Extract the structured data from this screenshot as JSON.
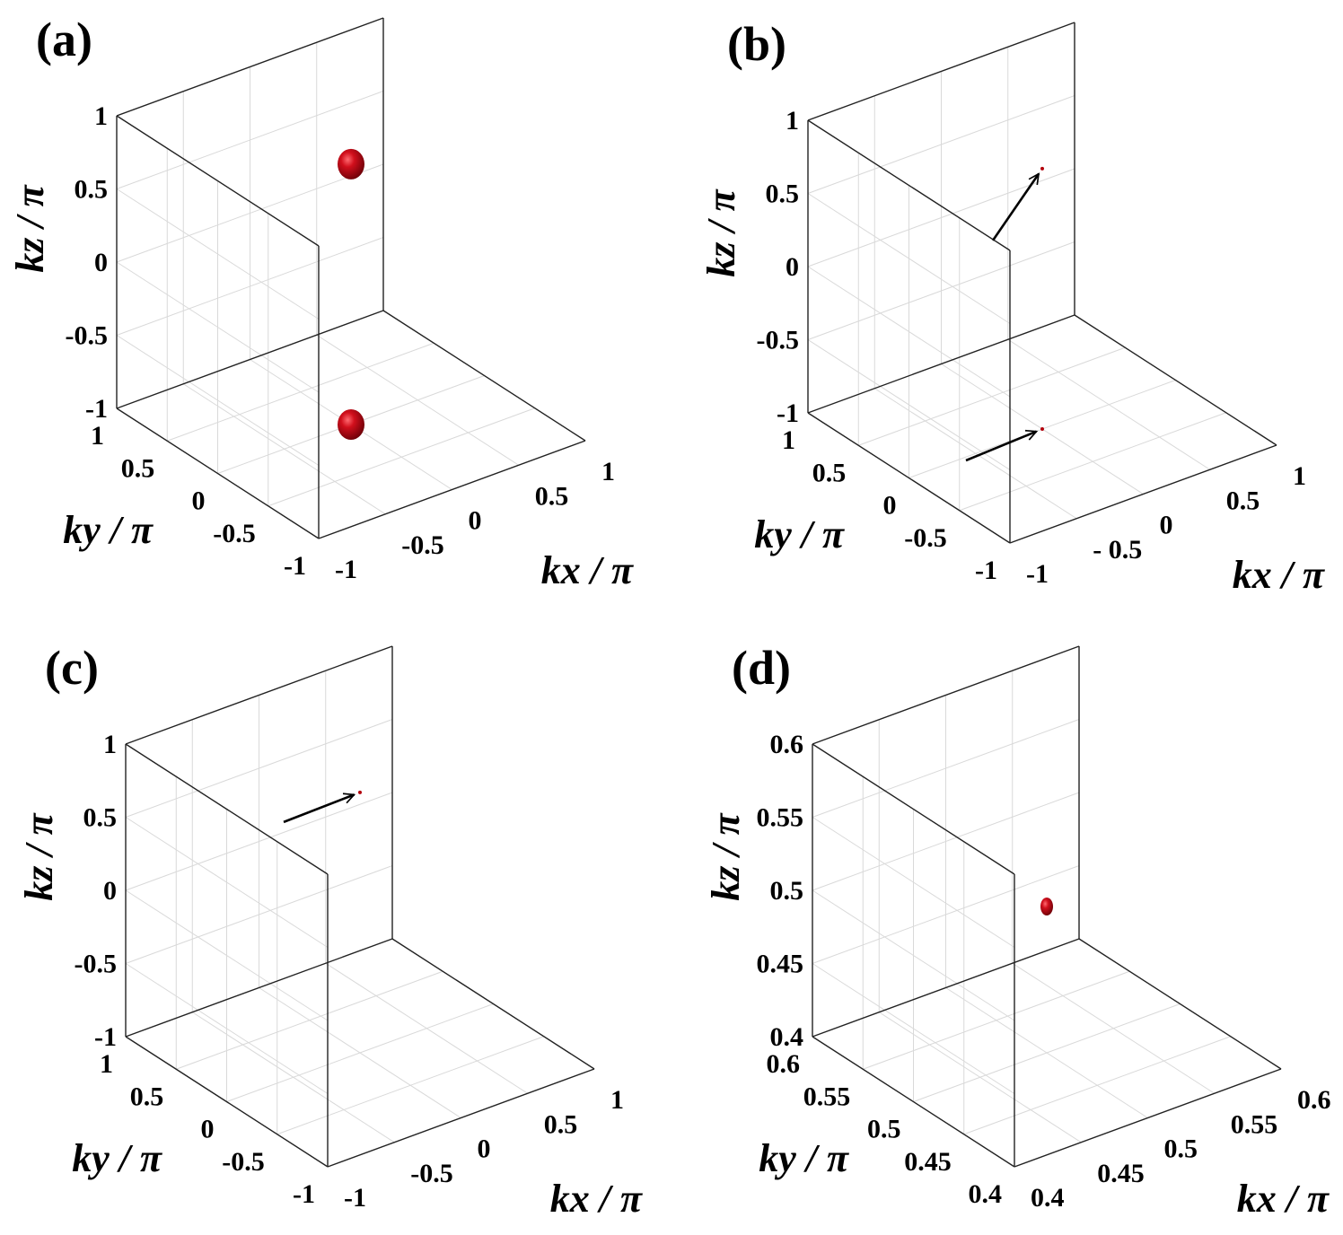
{
  "chart_data": [
    {
      "type": "scatter",
      "panel_label": "(a)",
      "xlabel": "kx / π",
      "ylabel": "ky / π",
      "zlabel": "kz / π",
      "xlim": [
        -1,
        1
      ],
      "ylim": [
        -1,
        1
      ],
      "zlim": [
        -1,
        1
      ],
      "xticks": [
        "-1",
        "-0.5",
        "0",
        "0.5",
        "1"
      ],
      "yticks": [
        "-1",
        "-0.5",
        "0",
        "0.5",
        "1"
      ],
      "zticks": [
        "-1",
        "-0.5",
        "0",
        "0.5",
        "1"
      ],
      "grid": true,
      "points": [
        {
          "x": 0.0,
          "y": 0.0,
          "z": 0.78,
          "marker": "sphere-large"
        },
        {
          "x": 0.0,
          "y": 0.0,
          "z": -1.0,
          "marker": "sphere-large"
        }
      ],
      "arrows": 0
    },
    {
      "type": "scatter",
      "panel_label": "(b)",
      "xlabel": "kx / π",
      "ylabel": "ky / π",
      "zlabel": "kz / π",
      "xlim": [
        -1,
        1
      ],
      "ylim": [
        -1,
        1
      ],
      "zlim": [
        -1,
        1
      ],
      "xticks": [
        "-1",
        "- 0.5",
        "0",
        "0.5",
        "1"
      ],
      "yticks": [
        "-1",
        "-0.5",
        "0",
        "0.5",
        "1"
      ],
      "zticks": [
        "-1",
        "-0.5",
        "0",
        "0.5",
        "1"
      ],
      "grid": true,
      "points": [
        {
          "x": 0.0,
          "y": 0.0,
          "z": 0.78,
          "marker": "dot-tiny"
        },
        {
          "x": 0.0,
          "y": 0.0,
          "z": -1.0,
          "marker": "dot-tiny"
        }
      ],
      "arrows": 2
    },
    {
      "type": "scatter",
      "panel_label": "(c)",
      "xlabel": "kx / π",
      "ylabel": "ky / π",
      "zlabel": "kz / π",
      "xlim": [
        -1,
        1
      ],
      "ylim": [
        -1,
        1
      ],
      "zlim": [
        -1,
        1
      ],
      "xticks": [
        "-1",
        "-0.5",
        "0",
        "0.5",
        "1"
      ],
      "yticks": [
        "-1",
        "-0.5",
        "0",
        "0.5",
        "1"
      ],
      "zticks": [
        "-1",
        "-0.5",
        "0",
        "0.5",
        "1"
      ],
      "grid": true,
      "points": [
        {
          "x": 0.0,
          "y": 0.0,
          "z": 0.78,
          "marker": "dot-tiny"
        }
      ],
      "arrows": 1
    },
    {
      "type": "scatter",
      "panel_label": "(d)",
      "xlabel": "kx / π",
      "ylabel": "ky / π",
      "zlabel": "kz / π",
      "xlim": [
        0.4,
        0.6
      ],
      "ylim": [
        0.4,
        0.6
      ],
      "zlim": [
        0.4,
        0.6
      ],
      "xticks": [
        "0.4",
        "0.45",
        "0.5",
        "0.55",
        "0.6"
      ],
      "yticks": [
        "0.4",
        "0.45",
        "0.5",
        "0.55",
        "0.6"
      ],
      "zticks": [
        "0.4",
        "0.45",
        "0.5",
        "0.55",
        "0.6"
      ],
      "grid": true,
      "points": [
        {
          "x": 0.5,
          "y": 0.5,
          "z": 0.5,
          "marker": "sphere-small"
        }
      ],
      "arrows": 0
    }
  ],
  "colors": {
    "marker": "#b3000c",
    "marker_highlight": "#e8454f",
    "axis": "#222222",
    "grid": "#d9d9d9"
  }
}
